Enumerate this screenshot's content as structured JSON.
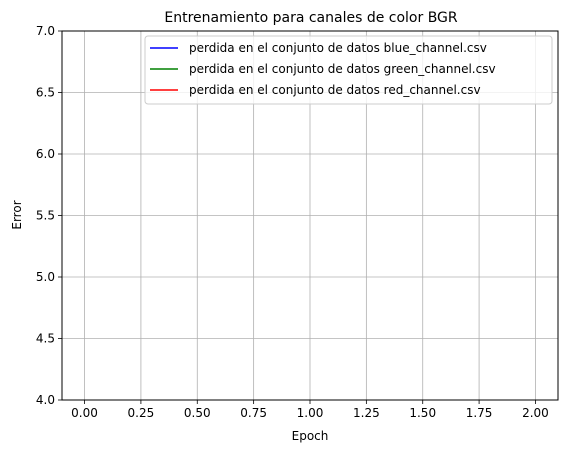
{
  "chart_data": {
    "type": "line",
    "title": "Entrenamiento para canales de color BGR",
    "xlabel": "Epoch",
    "ylabel": "Error",
    "xlim": [
      -0.1,
      2.1
    ],
    "ylim": [
      4.0,
      7.0
    ],
    "xticks": [
      "0.00",
      "0.25",
      "0.50",
      "0.75",
      "1.00",
      "1.25",
      "1.50",
      "1.75",
      "2.00"
    ],
    "xtick_values": [
      0,
      0.25,
      0.5,
      0.75,
      1.0,
      1.25,
      1.5,
      1.75,
      2.0
    ],
    "yticks": [
      "4.0",
      "4.5",
      "5.0",
      "5.5",
      "6.0",
      "6.5",
      "7.0"
    ],
    "ytick_values": [
      4.0,
      4.5,
      5.0,
      5.5,
      6.0,
      6.5,
      7.0
    ],
    "grid": true,
    "legend_position": "top-right",
    "series": [
      {
        "name": "perdida en el conjunto de datos blue_channel.csv",
        "color": "#0000ff",
        "x": [],
        "y": []
      },
      {
        "name": "perdida en el conjunto de datos green_channel.csv",
        "color": "#008000",
        "x": [],
        "y": []
      },
      {
        "name": "perdida en el conjunto de datos red_channel.csv",
        "color": "#ff0000",
        "x": [],
        "y": []
      }
    ]
  }
}
